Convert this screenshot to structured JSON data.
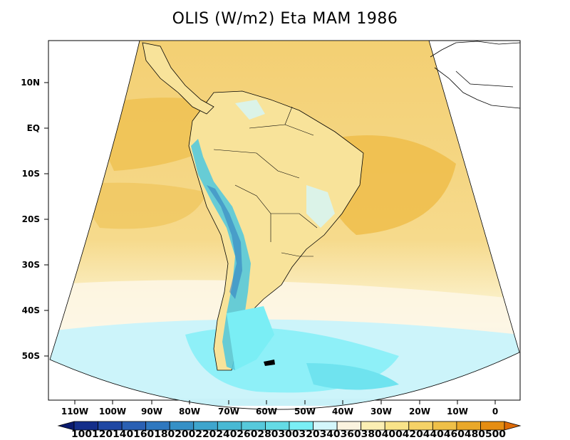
{
  "title": "OLIS (W/m2) Eta MAM 1986",
  "lat_labels": [
    "10N",
    "EQ",
    "10S",
    "20S",
    "30S",
    "40S",
    "50S"
  ],
  "lon_labels": [
    "110W",
    "100W",
    "90W",
    "80W",
    "70W",
    "60W",
    "50W",
    "40W",
    "30W",
    "20W",
    "10W",
    "0"
  ],
  "colorbar": {
    "levels": [
      100,
      120,
      140,
      160,
      180,
      200,
      220,
      240,
      260,
      280,
      300,
      320,
      340,
      360,
      380,
      400,
      420,
      440,
      460,
      480,
      500
    ],
    "labels_text": "100120140160180200220240260280300320340360380400420440460480500",
    "colors": [
      "#0a1a6e",
      "#142e8a",
      "#1f47a3",
      "#2a60b3",
      "#2f78bf",
      "#3590c6",
      "#3ea5cd",
      "#48b9d4",
      "#56c9db",
      "#64dbe5",
      "#7aeef5",
      "#d3f6fb",
      "#fbf3df",
      "#fbeeb3",
      "#f9e389",
      "#f5d267",
      "#efc048",
      "#e9a82a",
      "#e58d12",
      "#dd6a06"
    ]
  }
}
